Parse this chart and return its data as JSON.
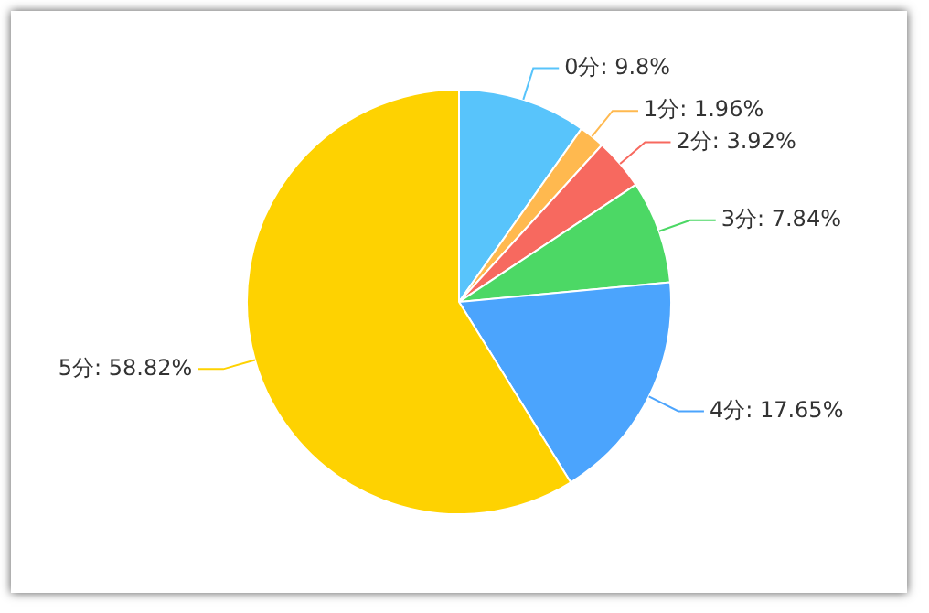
{
  "chart_data": {
    "type": "pie",
    "categories": [
      "0分",
      "1分",
      "2分",
      "3分",
      "4分",
      "5分"
    ],
    "values": [
      9.8,
      1.96,
      3.92,
      7.84,
      17.65,
      58.82
    ],
    "colors": [
      "#58c4fb",
      "#ffb94f",
      "#f7695f",
      "#4cd865",
      "#4ba4fd",
      "#fed201"
    ],
    "value_labels": [
      "9.8%",
      "1.96%",
      "3.92%",
      "7.84%",
      "17.65%",
      "58.82%"
    ],
    "legend": false
  }
}
